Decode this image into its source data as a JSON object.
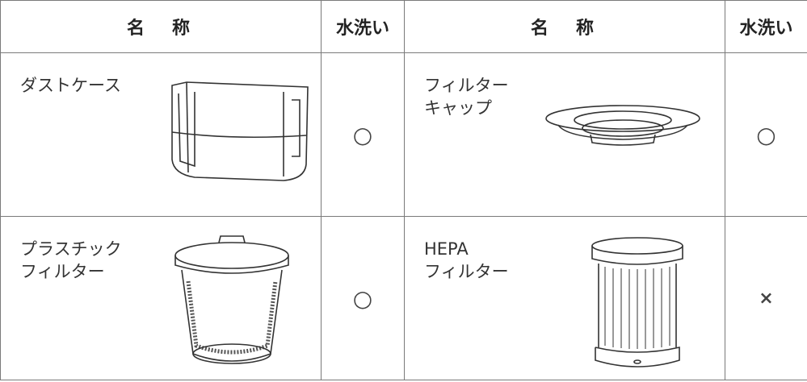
{
  "table": {
    "header": [
      "名　称",
      "水洗い",
      "名　称",
      "水洗い"
    ],
    "rows": [
      [
        {
          "name": [
            "ダストケース"
          ],
          "washable": "○"
        },
        {
          "name": [
            "フィルター",
            "キャップ"
          ],
          "washable": "○"
        }
      ],
      [
        {
          "name": [
            "プラスチック",
            "フィルター"
          ],
          "washable": "○"
        },
        {
          "name": [
            "HEPA",
            "フィルター"
          ],
          "washable": "×"
        }
      ]
    ]
  }
}
